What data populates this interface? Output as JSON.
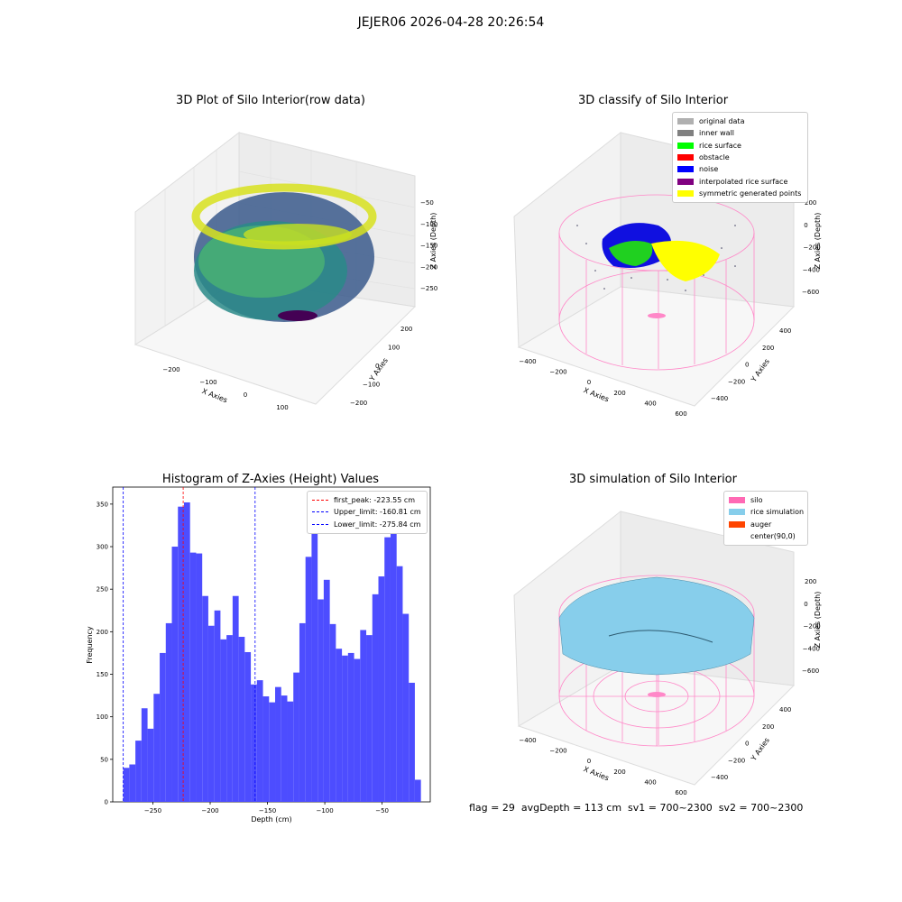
{
  "suptitle": "JEJER06 2026-04-28 20:26:54",
  "panels": {
    "raw": {
      "title": "3D Plot of Silo Interior(row data)",
      "x_label": "X Axies",
      "y_label": "Y Axies",
      "z_label": "Z Axies (Depth)",
      "x_ticks": [
        "−200",
        "−100",
        "0",
        "100"
      ],
      "y_ticks": [
        "−200",
        "−100",
        "0",
        "100",
        "200"
      ],
      "z_ticks": [
        "−50",
        "−100",
        "−150",
        "−200",
        "−250"
      ]
    },
    "classify": {
      "title": "3D classify of Silo Interior",
      "x_label": "X Axies",
      "y_label": "Y Axies",
      "z_label": "Z Axies (Depth)",
      "x_ticks": [
        "−400",
        "−200",
        "0",
        "200",
        "400",
        "600"
      ],
      "y_ticks": [
        "−400",
        "−200",
        "0",
        "200",
        "400"
      ],
      "z_ticks": [
        "200",
        "0",
        "−200",
        "−400",
        "−600"
      ],
      "legend": [
        {
          "label": "original data",
          "color": "#b0b0b0"
        },
        {
          "label": "inner wall",
          "color": "#808080"
        },
        {
          "label": "rice surface",
          "color": "#00ff00"
        },
        {
          "label": "obstacle",
          "color": "#ff0000"
        },
        {
          "label": "noise",
          "color": "#0000ff"
        },
        {
          "label": "interpolated rice surface",
          "color": "#800080"
        },
        {
          "label": "symmetric generated points",
          "color": "#ffff00"
        }
      ]
    },
    "simulation": {
      "title": "3D simulation of Silo Interior",
      "x_label": "X Axies",
      "y_label": "Y Axies",
      "z_label": "Z Axies (Depth)",
      "x_ticks": [
        "−400",
        "−200",
        "0",
        "200",
        "400",
        "600"
      ],
      "y_ticks": [
        "−400",
        "−200",
        "0",
        "200",
        "400"
      ],
      "z_ticks": [
        "200",
        "0",
        "−200",
        "−400",
        "−600"
      ],
      "legend": [
        {
          "label": "silo",
          "color": "#ff69b4"
        },
        {
          "label": "rice simulation",
          "color": "#87ceeb"
        },
        {
          "label": "auger",
          "color": "#ff4500"
        },
        {
          "label": "center(90,0)",
          "color": ""
        }
      ]
    }
  },
  "chart_data": {
    "type": "bar",
    "title": "Histogram of Z-Axies (Height) Values",
    "xlabel": "Depth (cm)",
    "ylabel": "Frequency",
    "xlim": [
      -285,
      -8
    ],
    "ylim": [
      0,
      370
    ],
    "x_ticks": [
      -250,
      -200,
      -150,
      -100,
      -50
    ],
    "x_tick_labels": [
      "−250",
      "−200",
      "−150",
      "−100",
      "−50"
    ],
    "y_ticks": [
      0,
      50,
      100,
      150,
      200,
      250,
      300,
      350
    ],
    "bar_color": "#4d4dff",
    "bin_start": -275.84,
    "bin_width": 5.3,
    "values": [
      40,
      44,
      72,
      110,
      86,
      127,
      175,
      210,
      300,
      347,
      352,
      293,
      292,
      242,
      207,
      225,
      191,
      196,
      242,
      194,
      176,
      138,
      143,
      124,
      117,
      135,
      125,
      118,
      152,
      210,
      288,
      322,
      238,
      261,
      209,
      180,
      172,
      175,
      168,
      202,
      196,
      244,
      265,
      311,
      325,
      277,
      221,
      140,
      26
    ],
    "vlines": [
      {
        "label": "first_peak: -223.55 cm",
        "x": -223.55,
        "color": "#ff0000"
      },
      {
        "label": "Upper_limit: -160.81 cm",
        "x": -160.81,
        "color": "#0000ff"
      },
      {
        "label": "Lower_limit: -275.84 cm",
        "x": -275.84,
        "color": "#0000ff"
      }
    ],
    "legend_position": "top-right"
  },
  "bottom_text": "flag = 29  avgDepth = 113 cm  sv1 = 700~2300  sv2 = 700~2300"
}
